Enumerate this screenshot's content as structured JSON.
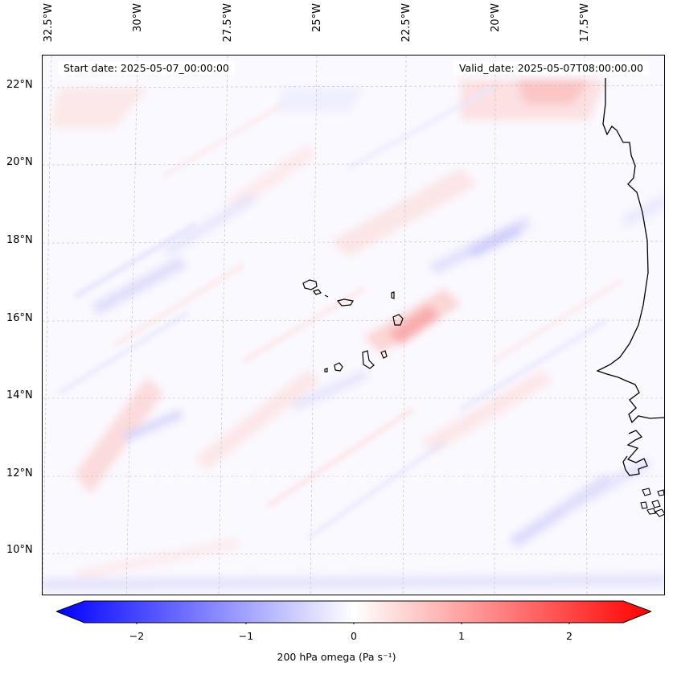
{
  "header": {
    "start_date": "Start date: 2025-05-07_00:00:00",
    "valid_date": "Valid_date: 2025-05-07T08:00:00.00"
  },
  "axes": {
    "lon_labels": [
      "32.5°W",
      "30°W",
      "27.5°W",
      "25°W",
      "22.5°W",
      "20°W",
      "17.5°W"
    ],
    "lat_labels": [
      "22°N",
      "20°N",
      "18°N",
      "16°N",
      "14°N",
      "12°N",
      "10°N"
    ]
  },
  "colorbar": {
    "label": "200 hPa omega (Pa s⁻¹)",
    "ticks": [
      "−2",
      "−1",
      "0",
      "1",
      "2"
    ],
    "range": [
      -2.5,
      2.5
    ],
    "colormap": "bwr",
    "color_low": "#0000ff",
    "color_mid": "#ffffff",
    "color_high": "#ff0000"
  },
  "map": {
    "field": "200 hPa omega",
    "region": "Eastern North Atlantic, Cape Verde Islands and West African coast"
  }
}
